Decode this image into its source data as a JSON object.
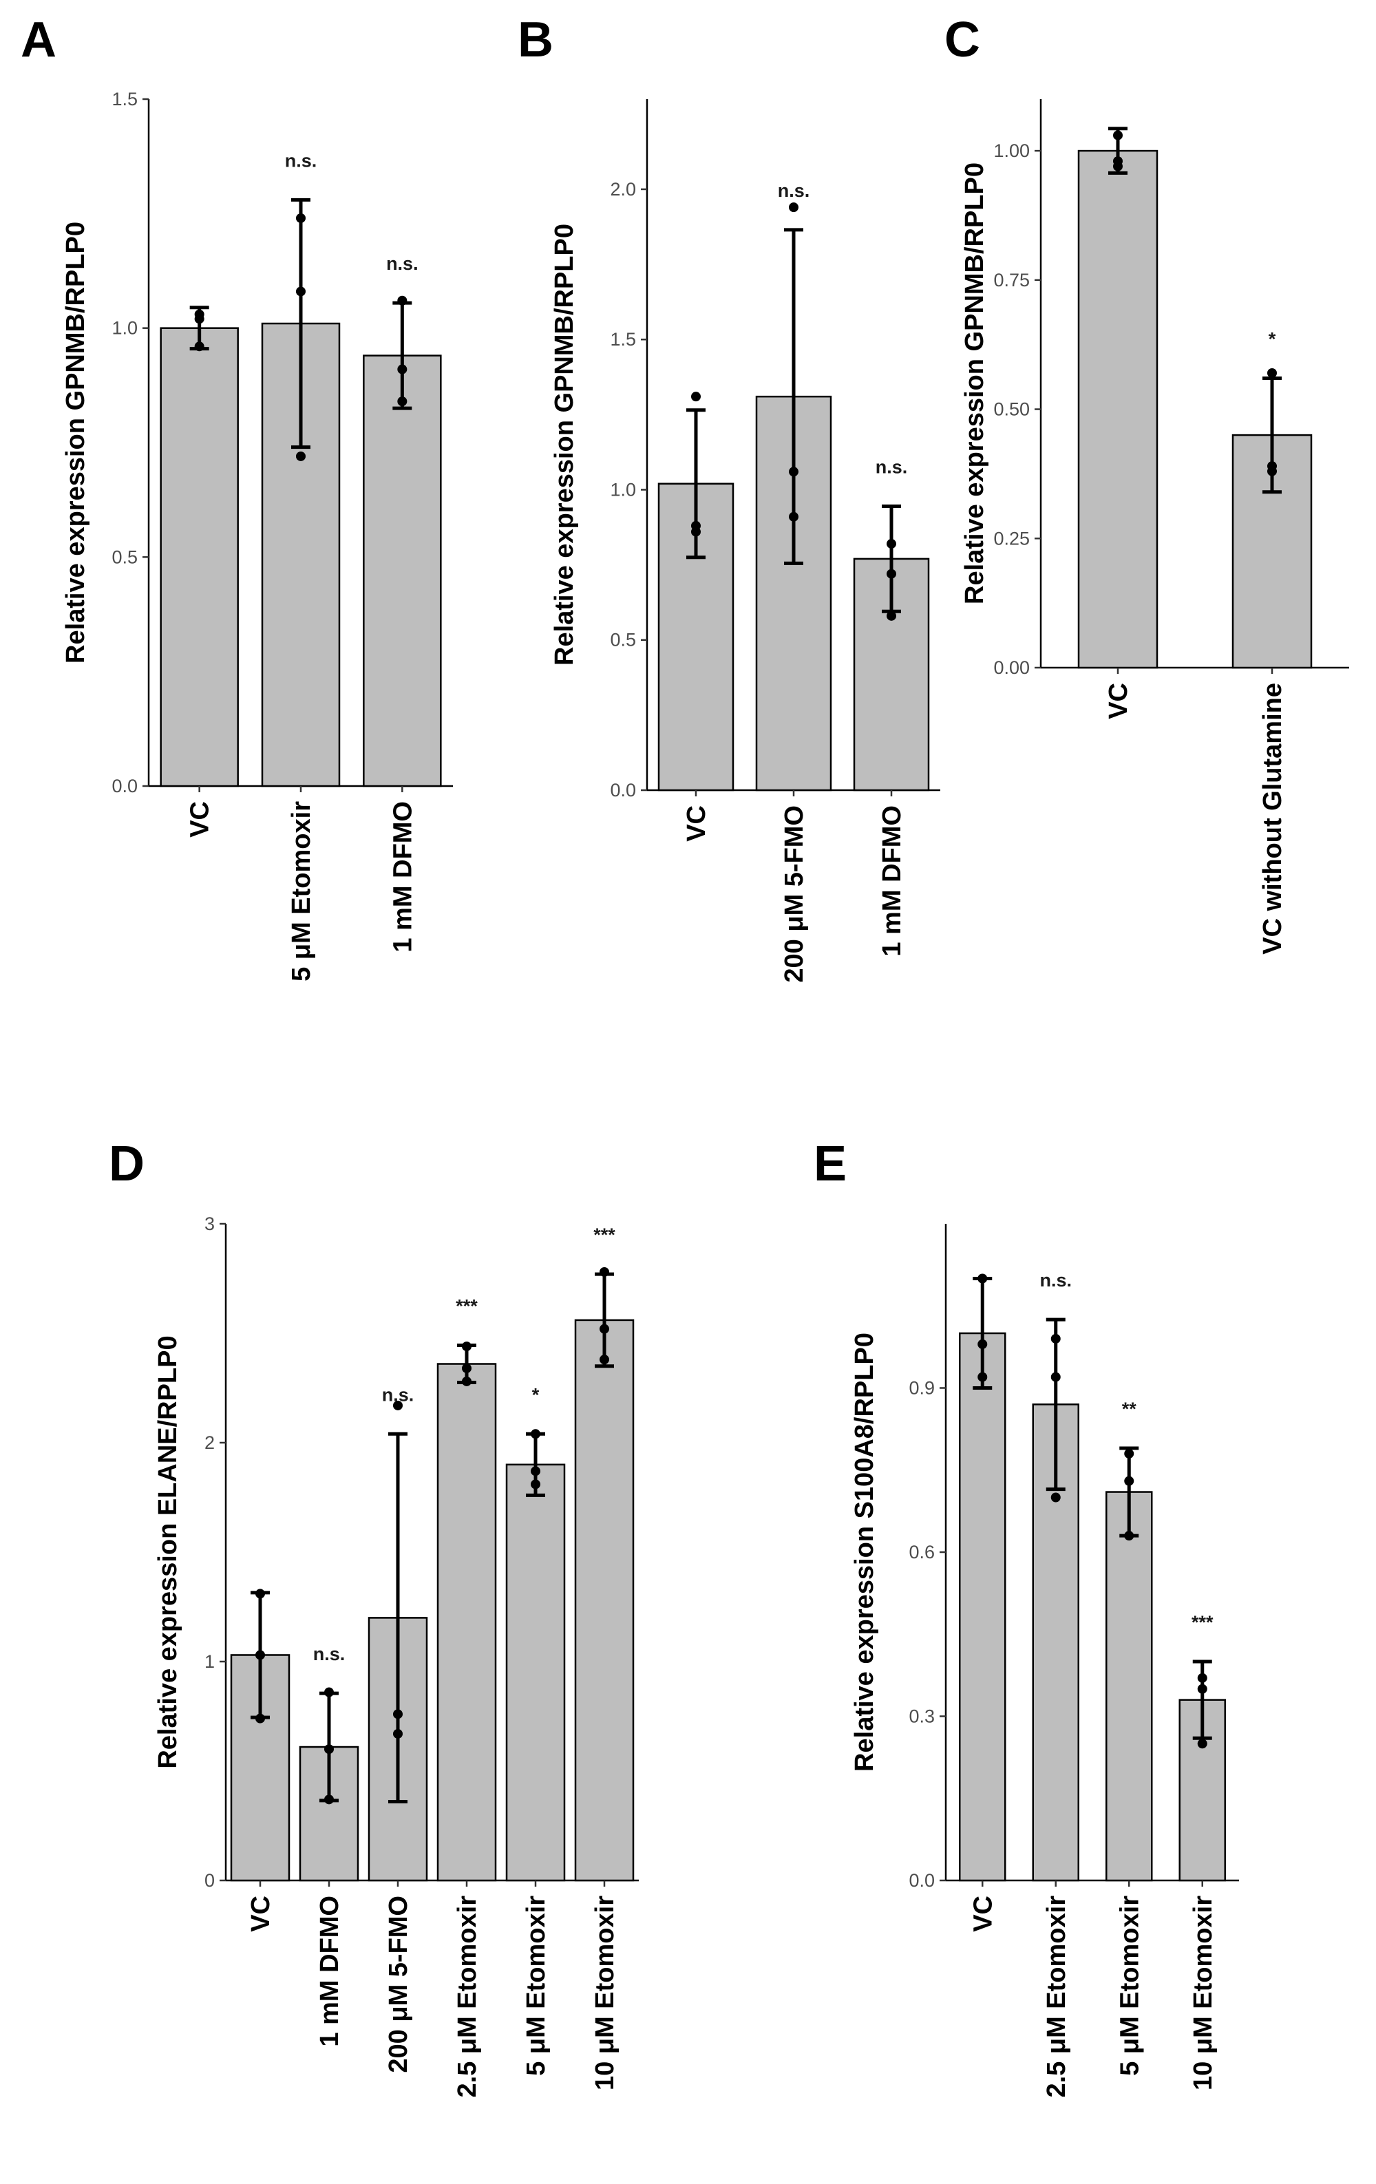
{
  "figure": {
    "panels": [
      "A",
      "B",
      "C",
      "D",
      "E"
    ]
  },
  "chart_data": [
    {
      "panel": "A",
      "type": "bar",
      "ylabel": "Relative expression GPNMB/RPLP0",
      "ylim": [
        0,
        1.5
      ],
      "yticks": [
        "0.0",
        "0.5",
        "1.0",
        "1.5"
      ],
      "ytick_values": [
        0,
        0.5,
        1.0,
        1.5
      ],
      "categories": [
        "VC",
        "5 μM Etomoxir",
        "1 mM DFMO"
      ],
      "values": [
        1.0,
        1.01,
        0.94
      ],
      "errors": [
        0.045,
        0.27,
        0.115
      ],
      "significance": [
        "",
        "n.s.",
        "n.s."
      ],
      "points": [
        [
          0.96,
          1.02,
          1.03
        ],
        [
          0.72,
          1.08,
          1.24
        ],
        [
          0.84,
          0.91,
          1.06
        ]
      ]
    },
    {
      "panel": "B",
      "type": "bar",
      "ylabel": "Relative expression GPNMB/RPLP0",
      "ylim": [
        0,
        2.3
      ],
      "yticks": [
        "0.0",
        "0.5",
        "1.0",
        "1.5",
        "2.0"
      ],
      "ytick_values": [
        0,
        0.5,
        1.0,
        1.5,
        2.0
      ],
      "categories": [
        "VC",
        "200 μM 5-FMO",
        "1 mM DFMO"
      ],
      "values": [
        1.02,
        1.31,
        0.77
      ],
      "errors": [
        0.245,
        0.555,
        0.175
      ],
      "significance": [
        "",
        "n.s.",
        "n.s."
      ],
      "points": [
        [
          0.86,
          0.88,
          1.31
        ],
        [
          0.91,
          1.06,
          1.94
        ],
        [
          0.58,
          0.72,
          0.82
        ]
      ]
    },
    {
      "panel": "C",
      "type": "bar",
      "ylabel": "Relative expression GPNMB/RPLP0",
      "ylim": [
        0,
        1.1
      ],
      "yticks": [
        "0.00",
        "0.25",
        "0.50",
        "0.75",
        "1.00"
      ],
      "ytick_values": [
        0,
        0.25,
        0.5,
        0.75,
        1.0
      ],
      "categories": [
        "VC",
        "VC without Glutamine"
      ],
      "values": [
        1.0,
        0.45
      ],
      "errors": [
        0.043,
        0.11
      ],
      "significance": [
        "",
        "*"
      ],
      "points": [
        [
          0.97,
          0.98,
          1.03
        ],
        [
          0.38,
          0.39,
          0.57
        ]
      ]
    },
    {
      "panel": "D",
      "type": "bar",
      "ylabel": "Relative expression ELANE/RPLP0",
      "ylim": [
        0,
        3.0
      ],
      "yticks": [
        "0",
        "1",
        "2",
        "3"
      ],
      "ytick_values": [
        0,
        1,
        2,
        3
      ],
      "categories": [
        "VC",
        "1 mM DFMO",
        "200 μM 5-FMO",
        "2.5 μM Etomoxir",
        "5 μM Etomoxir",
        "10 μM Etomoxir"
      ],
      "values": [
        1.03,
        0.61,
        1.2,
        2.36,
        1.9,
        2.56
      ],
      "errors": [
        0.285,
        0.245,
        0.84,
        0.085,
        0.14,
        0.21
      ],
      "significance": [
        "",
        "n.s.",
        "n.s.",
        "***",
        "*",
        "***"
      ],
      "points": [
        [
          0.74,
          1.03,
          1.31
        ],
        [
          0.37,
          0.6,
          0.86
        ],
        [
          0.67,
          0.76,
          2.17
        ],
        [
          2.28,
          2.34,
          2.44
        ],
        [
          1.81,
          1.87,
          2.04
        ],
        [
          2.38,
          2.52,
          2.78
        ]
      ]
    },
    {
      "panel": "E",
      "type": "bar",
      "ylabel": "Relative expression S100A8/RPLP0",
      "ylim": [
        0,
        1.2
      ],
      "yticks": [
        "0.0",
        "0.3",
        "0.6",
        "0.9"
      ],
      "ytick_values": [
        0,
        0.3,
        0.6,
        0.9
      ],
      "categories": [
        "VC",
        "2.5 μM Etomoxir",
        "5 μM Etomoxir",
        "10 μM Etomoxir"
      ],
      "values": [
        1.0,
        0.87,
        0.71,
        0.33
      ],
      "errors": [
        0.1,
        0.155,
        0.08,
        0.07
      ],
      "significance": [
        "",
        "n.s.",
        "**",
        "***"
      ],
      "points": [
        [
          0.92,
          0.98,
          1.1
        ],
        [
          0.7,
          0.92,
          0.99
        ],
        [
          0.63,
          0.73,
          0.78
        ],
        [
          0.25,
          0.35,
          0.37
        ]
      ]
    }
  ]
}
